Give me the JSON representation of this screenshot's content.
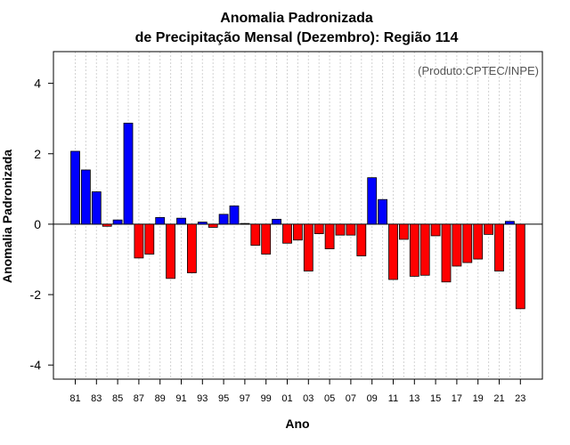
{
  "chart_data": {
    "type": "bar",
    "title": "Anomalia Padronizada",
    "subtitle": "de Precipitação Mensal (Dezembro): Região 114",
    "xlabel": "Ano",
    "ylabel": "Anomalia Padronizada",
    "credit": "(Produto:CPTEC/INPE)",
    "ylim": [
      -4.4,
      4.9
    ],
    "yticks": [
      -4,
      -2,
      0,
      2,
      4
    ],
    "grid": "vertical dotted",
    "positive_color": "#0000ff",
    "negative_color": "#ff0000",
    "categories": [
      "81",
      "82",
      "83",
      "84",
      "85",
      "86",
      "87",
      "88",
      "89",
      "90",
      "91",
      "92",
      "93",
      "94",
      "95",
      "96",
      "97",
      "98",
      "99",
      "00",
      "01",
      "02",
      "03",
      "04",
      "05",
      "06",
      "07",
      "08",
      "09",
      "10",
      "11",
      "12",
      "13",
      "14",
      "15",
      "16",
      "17",
      "18",
      "19",
      "20",
      "21",
      "22",
      "23"
    ],
    "x_tick_labels": [
      "81",
      "83",
      "85",
      "87",
      "89",
      "91",
      "93",
      "95",
      "97",
      "99",
      "01",
      "03",
      "05",
      "07",
      "09",
      "11",
      "13",
      "15",
      "17",
      "19",
      "21",
      "23"
    ],
    "values": [
      2.07,
      1.54,
      0.92,
      -0.06,
      0.12,
      2.87,
      -0.96,
      -0.85,
      0.19,
      -1.54,
      0.17,
      -1.38,
      0.06,
      -0.09,
      0.28,
      0.52,
      0.02,
      -0.6,
      -0.85,
      0.14,
      -0.54,
      -0.45,
      -1.33,
      -0.27,
      -0.7,
      -0.31,
      -0.31,
      -0.9,
      1.32,
      0.7,
      -1.57,
      -0.43,
      -1.48,
      -1.45,
      -0.33,
      -1.64,
      -1.19,
      -1.09,
      -0.99,
      -0.29,
      -1.33,
      0.08,
      -2.4
    ]
  }
}
